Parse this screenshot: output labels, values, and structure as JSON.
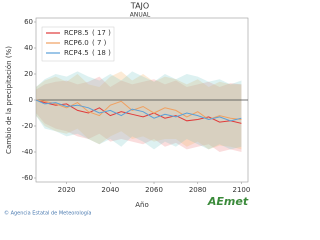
{
  "chart_data": {
    "type": "line",
    "title": "TAJO",
    "subtitle": "ANUAL",
    "x_label": "Año",
    "y_label": "Cambio de la precipitación (%)",
    "x": [
      2006,
      2010,
      2015,
      2020,
      2025,
      2030,
      2035,
      2040,
      2045,
      2050,
      2055,
      2060,
      2065,
      2070,
      2075,
      2080,
      2085,
      2090,
      2095,
      2100
    ],
    "xlim": [
      2006,
      2103
    ],
    "xticks": [
      2020,
      2040,
      2060,
      2080,
      2100
    ],
    "ylim": [
      -60,
      60
    ],
    "yticks": [
      -60,
      -40,
      -20,
      0,
      20,
      40,
      60
    ],
    "reference_line": 0,
    "series": [
      {
        "name": "RCP8.5",
        "count_label": "( 17 )",
        "color": "#e03a3a",
        "band_color": "rgba(235,120,120,0.25)",
        "values": [
          0,
          -2,
          -4,
          -3,
          -8,
          -10,
          -6,
          -12,
          -9,
          -11,
          -13,
          -10,
          -14,
          -12,
          -16,
          -15,
          -13,
          -17,
          -16,
          -18
        ],
        "upper": [
          8,
          12,
          14,
          15,
          12,
          14,
          18,
          10,
          15,
          12,
          14,
          16,
          12,
          15,
          10,
          12,
          14,
          10,
          13,
          12
        ],
        "lower": [
          -10,
          -18,
          -22,
          -24,
          -28,
          -30,
          -26,
          -32,
          -30,
          -32,
          -34,
          -30,
          -36,
          -33,
          -38,
          -36,
          -34,
          -40,
          -38,
          -40
        ]
      },
      {
        "name": "RCP6.0",
        "count_label": "( 7 )",
        "color": "#f0a060",
        "band_color": "rgba(245,190,120,0.3)",
        "values": [
          0,
          -1,
          -3,
          -6,
          -2,
          -9,
          -12,
          -4,
          -1,
          -8,
          -5,
          -10,
          -6,
          -8,
          -13,
          -9,
          -15,
          -12,
          -14,
          -15
        ],
        "upper": [
          10,
          15,
          18,
          14,
          20,
          12,
          10,
          18,
          22,
          15,
          20,
          14,
          18,
          16,
          12,
          16,
          10,
          14,
          12,
          12
        ],
        "lower": [
          -12,
          -20,
          -24,
          -26,
          -22,
          -30,
          -34,
          -28,
          -24,
          -30,
          -28,
          -32,
          -30,
          -30,
          -36,
          -32,
          -38,
          -35,
          -36,
          -38
        ]
      },
      {
        "name": "RCP4.5",
        "count_label": "( 18 )",
        "color": "#5aa0d8",
        "band_color": "rgba(120,200,200,0.25)",
        "values": [
          0,
          -3,
          -2,
          -5,
          -4,
          -6,
          -10,
          -8,
          -12,
          -7,
          -9,
          -14,
          -11,
          -13,
          -10,
          -12,
          -15,
          -13,
          -16,
          -14
        ],
        "upper": [
          10,
          16,
          20,
          18,
          22,
          18,
          15,
          20,
          15,
          22,
          18,
          14,
          20,
          16,
          20,
          18,
          14,
          16,
          12,
          15
        ],
        "lower": [
          -12,
          -22,
          -24,
          -28,
          -26,
          -30,
          -34,
          -30,
          -36,
          -28,
          -32,
          -38,
          -32,
          -36,
          -30,
          -34,
          -38,
          -34,
          -38,
          -36
        ]
      }
    ],
    "footer": "© Agencia Estatal de Meteorología",
    "logo": "AEmet"
  }
}
